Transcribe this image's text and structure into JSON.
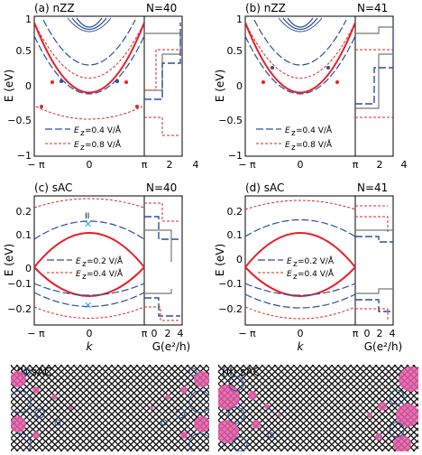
{
  "figure": {
    "panel_a": {
      "label": "(a) nZZ",
      "n": "N=40"
    },
    "panel_b": {
      "label": "(b) nZZ",
      "n": "N=41"
    },
    "panel_c": {
      "label": "(c) sAC",
      "n": "N=40",
      "marker": "II"
    },
    "panel_d": {
      "label": "(d) sAC",
      "n": "N=41"
    },
    "panel_I": {
      "label": "(I) sAC"
    },
    "panel_II": {
      "label": "(II) sAC"
    },
    "ylabel": "E (eV)",
    "xlabel": "k",
    "glabel": "G(e²/h)",
    "legend_top": {
      "dash": "E",
      "dash_sub": "z",
      "dash_val": "=0.4 V/Å",
      "dot": "E",
      "dot_sub": "z",
      "dot_val": "=0.8 V/Å"
    },
    "legend_bot": {
      "dash": "E",
      "dash_sub": "z",
      "dash_val": "=0.2 V/Å",
      "dot": "E",
      "dot_sub": "z",
      "dot_val": "=0.4 V/Å"
    },
    "ticks_top_y": [
      "1",
      "0.5",
      "0",
      "−0.5",
      "−1"
    ],
    "ticks_bot_y": [
      "0.2",
      "0.1",
      "0",
      "−0.1",
      "−0.2"
    ],
    "ticks_k": [
      "− π",
      "0",
      "π"
    ],
    "ticks_g": [
      "2",
      "4"
    ],
    "ticks_g_bot": [
      "0",
      "2",
      "4"
    ]
  },
  "colors": {
    "solid": "#e8202a",
    "dash": "#2b4f9c",
    "dot": "#d62a2a",
    "grey": "#777777",
    "atom": "#e55aa8"
  }
}
